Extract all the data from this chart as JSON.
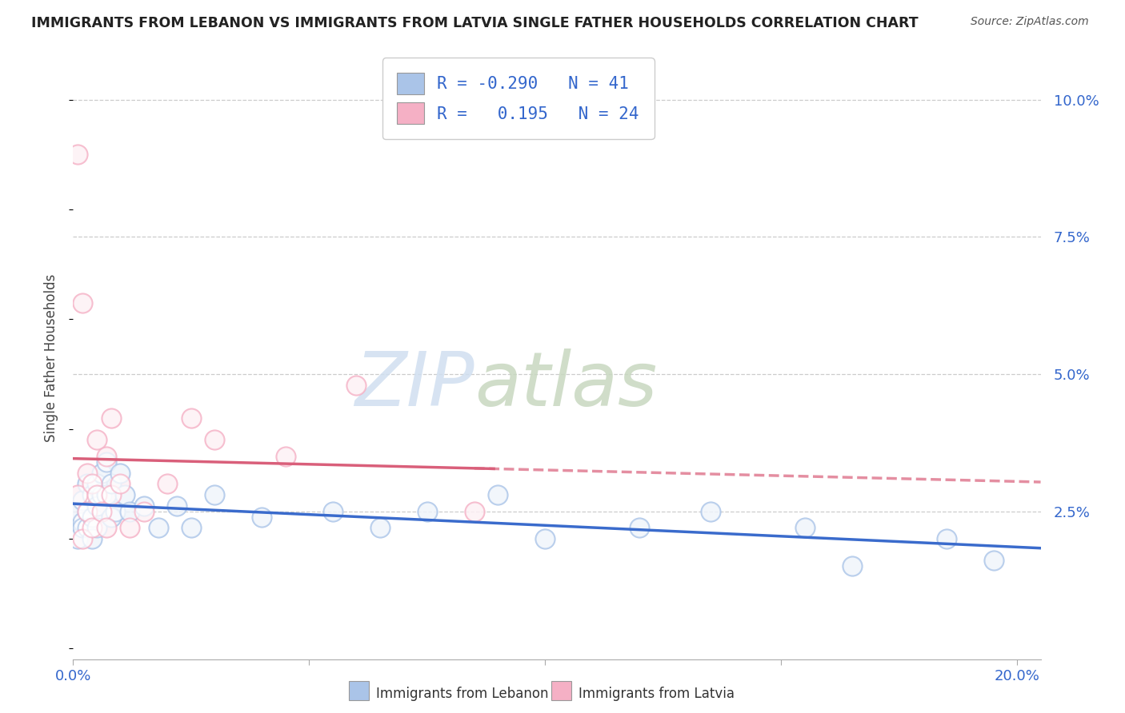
{
  "title": "IMMIGRANTS FROM LEBANON VS IMMIGRANTS FROM LATVIA SINGLE FATHER HOUSEHOLDS CORRELATION CHART",
  "source": "Source: ZipAtlas.com",
  "ylabel": "Single Father Households",
  "xlabel_lebanon": "Immigrants from Lebanon",
  "xlabel_latvia": "Immigrants from Latvia",
  "xlim": [
    0.0,
    0.205
  ],
  "ylim": [
    -0.002,
    0.108
  ],
  "yticks": [
    0.0,
    0.025,
    0.05,
    0.075,
    0.1
  ],
  "ytick_labels": [
    "",
    "2.5%",
    "5.0%",
    "7.5%",
    "10.0%"
  ],
  "xticks": [
    0.0,
    0.05,
    0.1,
    0.15,
    0.2
  ],
  "xtick_labels": [
    "0.0%",
    "",
    "",
    "",
    "20.0%"
  ],
  "lebanon_color": "#aac4e8",
  "latvia_color": "#f5b0c5",
  "trend_lebanon_color": "#3a6bcc",
  "trend_latvia_color": "#d95f7a",
  "grid_color": "#cccccc",
  "background": "#ffffff",
  "watermark_zip": "ZIP",
  "watermark_atlas": "atlas",
  "zip_color": "#c8d8ed",
  "atlas_color": "#c8d8c8",
  "lebanon_R": -0.29,
  "lebanon_N": 41,
  "latvia_R": 0.195,
  "latvia_N": 24,
  "leb_x": [
    0.001,
    0.001,
    0.002,
    0.002,
    0.002,
    0.003,
    0.003,
    0.003,
    0.004,
    0.004,
    0.004,
    0.005,
    0.005,
    0.005,
    0.006,
    0.006,
    0.007,
    0.007,
    0.008,
    0.008,
    0.009,
    0.01,
    0.011,
    0.012,
    0.015,
    0.018,
    0.022,
    0.025,
    0.03,
    0.04,
    0.055,
    0.065,
    0.075,
    0.09,
    0.1,
    0.12,
    0.135,
    0.155,
    0.165,
    0.185,
    0.195
  ],
  "leb_y": [
    0.02,
    0.025,
    0.023,
    0.027,
    0.022,
    0.025,
    0.03,
    0.022,
    0.028,
    0.024,
    0.02,
    0.03,
    0.026,
    0.022,
    0.032,
    0.028,
    0.034,
    0.028,
    0.03,
    0.024,
    0.025,
    0.032,
    0.028,
    0.025,
    0.026,
    0.022,
    0.026,
    0.022,
    0.028,
    0.024,
    0.025,
    0.022,
    0.025,
    0.028,
    0.02,
    0.022,
    0.025,
    0.022,
    0.015,
    0.02,
    0.016
  ],
  "lat_x": [
    0.001,
    0.001,
    0.002,
    0.002,
    0.003,
    0.003,
    0.004,
    0.004,
    0.005,
    0.005,
    0.006,
    0.007,
    0.007,
    0.008,
    0.008,
    0.01,
    0.012,
    0.015,
    0.02,
    0.025,
    0.03,
    0.045,
    0.06,
    0.085
  ],
  "lat_y": [
    0.09,
    0.028,
    0.063,
    0.02,
    0.025,
    0.032,
    0.03,
    0.022,
    0.038,
    0.028,
    0.025,
    0.035,
    0.022,
    0.042,
    0.028,
    0.03,
    0.022,
    0.025,
    0.03,
    0.042,
    0.038,
    0.035,
    0.048,
    0.025
  ],
  "marker_size": 350,
  "lw_trend": 2.5
}
